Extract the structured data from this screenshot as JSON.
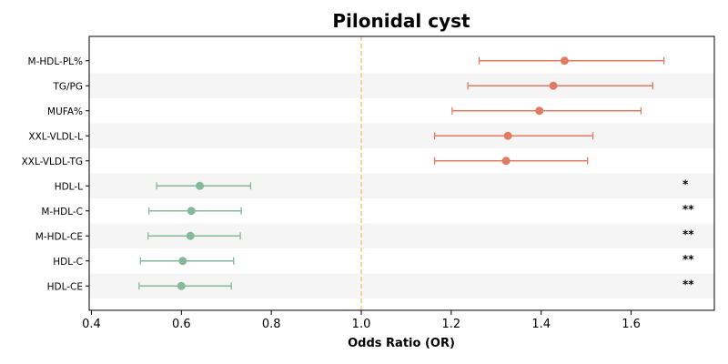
{
  "chart_data": {
    "type": "forest",
    "title": "Pilonidal cyst",
    "xlabel": "Odds Ratio (OR)",
    "xlim": [
      0.395,
      1.785
    ],
    "xticks": [
      "0.4",
      "0.6",
      "0.8",
      "1.0",
      "1.2",
      "1.4",
      "1.6"
    ],
    "reference_line": 1.0,
    "reference_color": "#f6c98a",
    "row_shading": "alternating",
    "shade_color": "#f5f5f5",
    "rows": [
      {
        "label": "M-HDL-PL%",
        "or": 1.452,
        "lower": 1.262,
        "upper": 1.673,
        "sig": "",
        "color": "#e07b62"
      },
      {
        "label": "TG/PG",
        "or": 1.427,
        "lower": 1.237,
        "upper": 1.648,
        "sig": "",
        "color": "#e07b62"
      },
      {
        "label": "MUFA%",
        "or": 1.396,
        "lower": 1.202,
        "upper": 1.622,
        "sig": "",
        "color": "#e07b62"
      },
      {
        "label": "XXL-VLDL-L",
        "or": 1.326,
        "lower": 1.163,
        "upper": 1.515,
        "sig": "",
        "color": "#e07b62"
      },
      {
        "label": "XXL-VLDL-TG",
        "or": 1.322,
        "lower": 1.163,
        "upper": 1.503,
        "sig": "",
        "color": "#e07b62"
      },
      {
        "label": "HDL-L",
        "or": 0.641,
        "lower": 0.545,
        "upper": 0.754,
        "sig": "*",
        "color": "#86b89c"
      },
      {
        "label": "M-HDL-C",
        "or": 0.622,
        "lower": 0.528,
        "upper": 0.733,
        "sig": "**",
        "color": "#86b89c"
      },
      {
        "label": "M-HDL-CE",
        "or": 0.62,
        "lower": 0.526,
        "upper": 0.731,
        "sig": "**",
        "color": "#86b89c"
      },
      {
        "label": "HDL-C",
        "or": 0.603,
        "lower": 0.509,
        "upper": 0.716,
        "sig": "**",
        "color": "#86b89c"
      },
      {
        "label": "HDL-CE",
        "or": 0.6,
        "lower": 0.506,
        "upper": 0.711,
        "sig": "**",
        "color": "#86b89c"
      }
    ]
  }
}
